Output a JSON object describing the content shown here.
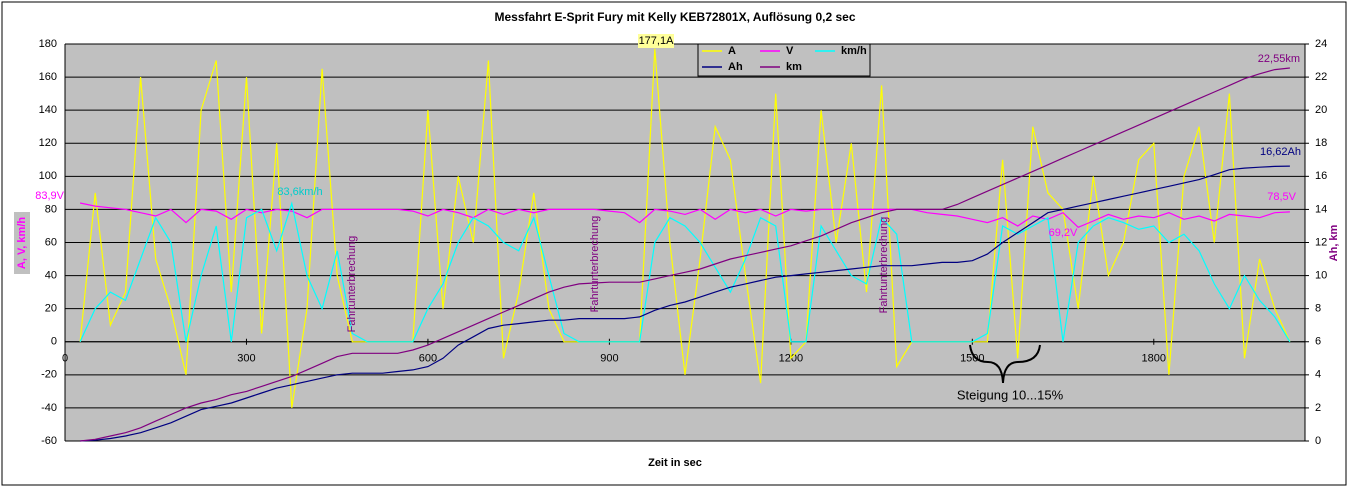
{
  "chart_data": {
    "type": "line",
    "title": "Messfahrt E-Sprit Fury mit Kelly KEB72801X, Auflösung 0,2 sec",
    "x_label": "Zeit in sec",
    "y_label": "A, V, km/h",
    "y2_label": "Ah, km",
    "xlim": [
      0,
      2050
    ],
    "xticks": [
      0,
      300,
      600,
      900,
      1200,
      1500,
      1800
    ],
    "ylim": [
      -60,
      180
    ],
    "yticks": [
      -60,
      -40,
      -20,
      0,
      20,
      40,
      60,
      80,
      100,
      120,
      140,
      160,
      180
    ],
    "y2lim": [
      0,
      24
    ],
    "y2ticks": [
      0,
      2,
      4,
      6,
      8,
      10,
      12,
      14,
      16,
      18,
      20,
      22,
      24
    ],
    "grid": true,
    "background": "#c0c0c0",
    "x": [
      25,
      50,
      75,
      100,
      125,
      150,
      175,
      200,
      225,
      250,
      275,
      300,
      325,
      350,
      375,
      400,
      425,
      450,
      475,
      500,
      525,
      550,
      575,
      600,
      625,
      650,
      675,
      700,
      725,
      750,
      775,
      800,
      825,
      850,
      875,
      900,
      925,
      950,
      975,
      1000,
      1025,
      1050,
      1075,
      1100,
      1125,
      1150,
      1175,
      1200,
      1225,
      1250,
      1275,
      1300,
      1325,
      1350,
      1375,
      1400,
      1425,
      1450,
      1475,
      1500,
      1525,
      1550,
      1575,
      1600,
      1625,
      1650,
      1675,
      1700,
      1725,
      1750,
      1775,
      1800,
      1825,
      1850,
      1875,
      1900,
      1925,
      1950,
      1975,
      2000,
      2025
    ],
    "series": [
      {
        "name": "A",
        "color": "#ffff00",
        "values": [
          0,
          90,
          10,
          30,
          160,
          50,
          20,
          -20,
          140,
          170,
          30,
          160,
          5,
          120,
          -40,
          20,
          165,
          40,
          0,
          0,
          0,
          0,
          0,
          140,
          20,
          100,
          60,
          170,
          -10,
          30,
          90,
          20,
          0,
          0,
          0,
          0,
          0,
          0,
          177.1,
          60,
          -20,
          50,
          130,
          110,
          40,
          -25,
          150,
          -10,
          0,
          140,
          60,
          120,
          30,
          155,
          -15,
          0,
          0,
          0,
          0,
          0,
          0,
          110,
          -10,
          130,
          90,
          80,
          20,
          100,
          40,
          60,
          110,
          120,
          -20,
          100,
          130,
          60,
          150,
          -10,
          50,
          20,
          0
        ]
      },
      {
        "name": "V",
        "color": "#ff00ff",
        "values": [
          83.9,
          82,
          81,
          80,
          78,
          76,
          80,
          72,
          80,
          79,
          74,
          80,
          78,
          80,
          79,
          75,
          80,
          80,
          80,
          80,
          80,
          80,
          79,
          76,
          80,
          78,
          75,
          80,
          77,
          80,
          78,
          80,
          80,
          80,
          80,
          79,
          78,
          72,
          80,
          79,
          77,
          80,
          74,
          80,
          78,
          80,
          76,
          80,
          79,
          80,
          80,
          80,
          80,
          80,
          80,
          80,
          78,
          77,
          76,
          74,
          72,
          75,
          70,
          76,
          74,
          78,
          69.2,
          73,
          77,
          74,
          76,
          75,
          78,
          74,
          76,
          73,
          77,
          76,
          75,
          78,
          78.5
        ]
      },
      {
        "name": "km/h",
        "color": "#00ffff",
        "values": [
          0,
          20,
          30,
          25,
          50,
          75,
          60,
          0,
          40,
          70,
          0,
          75,
          80,
          55,
          83.6,
          40,
          20,
          55,
          5,
          0,
          0,
          0,
          0,
          20,
          35,
          60,
          75,
          70,
          60,
          55,
          75,
          40,
          5,
          0,
          0,
          0,
          0,
          0,
          60,
          75,
          70,
          60,
          45,
          30,
          50,
          75,
          70,
          0,
          0,
          70,
          55,
          40,
          35,
          75,
          65,
          0,
          0,
          0,
          0,
          0,
          5,
          70,
          65,
          70,
          75,
          0,
          60,
          70,
          75,
          72,
          68,
          70,
          60,
          65,
          55,
          35,
          20,
          40,
          25,
          15,
          0
        ]
      },
      {
        "name": "Ah",
        "color": "#000080",
        "axis": "y2",
        "values": [
          0,
          0.05,
          0.15,
          0.3,
          0.5,
          0.8,
          1.1,
          1.5,
          1.9,
          2.1,
          2.3,
          2.6,
          2.9,
          3.2,
          3.4,
          3.6,
          3.8,
          4.0,
          4.1,
          4.1,
          4.1,
          4.2,
          4.3,
          4.5,
          5.0,
          5.8,
          6.3,
          6.8,
          7.0,
          7.1,
          7.2,
          7.3,
          7.3,
          7.4,
          7.4,
          7.4,
          7.4,
          7.5,
          7.9,
          8.2,
          8.4,
          8.7,
          9.0,
          9.3,
          9.5,
          9.7,
          9.9,
          10.0,
          10.1,
          10.2,
          10.3,
          10.4,
          10.5,
          10.6,
          10.6,
          10.6,
          10.7,
          10.8,
          10.8,
          10.9,
          11.3,
          12.0,
          12.6,
          13.2,
          13.8,
          14.0,
          14.2,
          14.4,
          14.6,
          14.8,
          15.0,
          15.2,
          15.4,
          15.6,
          15.8,
          16.1,
          16.4,
          16.5,
          16.55,
          16.6,
          16.62
        ]
      },
      {
        "name": "km",
        "color": "#800080",
        "axis": "y2",
        "values": [
          0,
          0.1,
          0.3,
          0.5,
          0.8,
          1.2,
          1.6,
          2.0,
          2.3,
          2.5,
          2.8,
          3.0,
          3.3,
          3.6,
          3.9,
          4.3,
          4.7,
          5.1,
          5.3,
          5.3,
          5.3,
          5.3,
          5.5,
          5.8,
          6.2,
          6.6,
          7.0,
          7.4,
          7.8,
          8.2,
          8.6,
          9.0,
          9.3,
          9.5,
          9.55,
          9.6,
          9.6,
          9.6,
          9.8,
          10.0,
          10.2,
          10.4,
          10.7,
          11.0,
          11.2,
          11.4,
          11.6,
          11.8,
          12.1,
          12.4,
          12.8,
          13.2,
          13.5,
          13.8,
          14.0,
          14.0,
          14.0,
          14.0,
          14.3,
          14.7,
          15.1,
          15.5,
          15.9,
          16.3,
          16.7,
          17.1,
          17.5,
          17.9,
          18.3,
          18.7,
          19.1,
          19.5,
          19.9,
          20.3,
          20.7,
          21.1,
          21.5,
          21.9,
          22.2,
          22.45,
          22.55
        ]
      }
    ],
    "annotations": [
      "177,1A",
      "83,9V",
      "83,6km/h",
      "22,55km",
      "16,62Ah",
      "78,5V",
      "69,2V",
      "Fahrtunterbrechung",
      "Fahrtunterbrechung",
      "Fahrtunterbrechung",
      "Steigung 10...15%"
    ]
  }
}
